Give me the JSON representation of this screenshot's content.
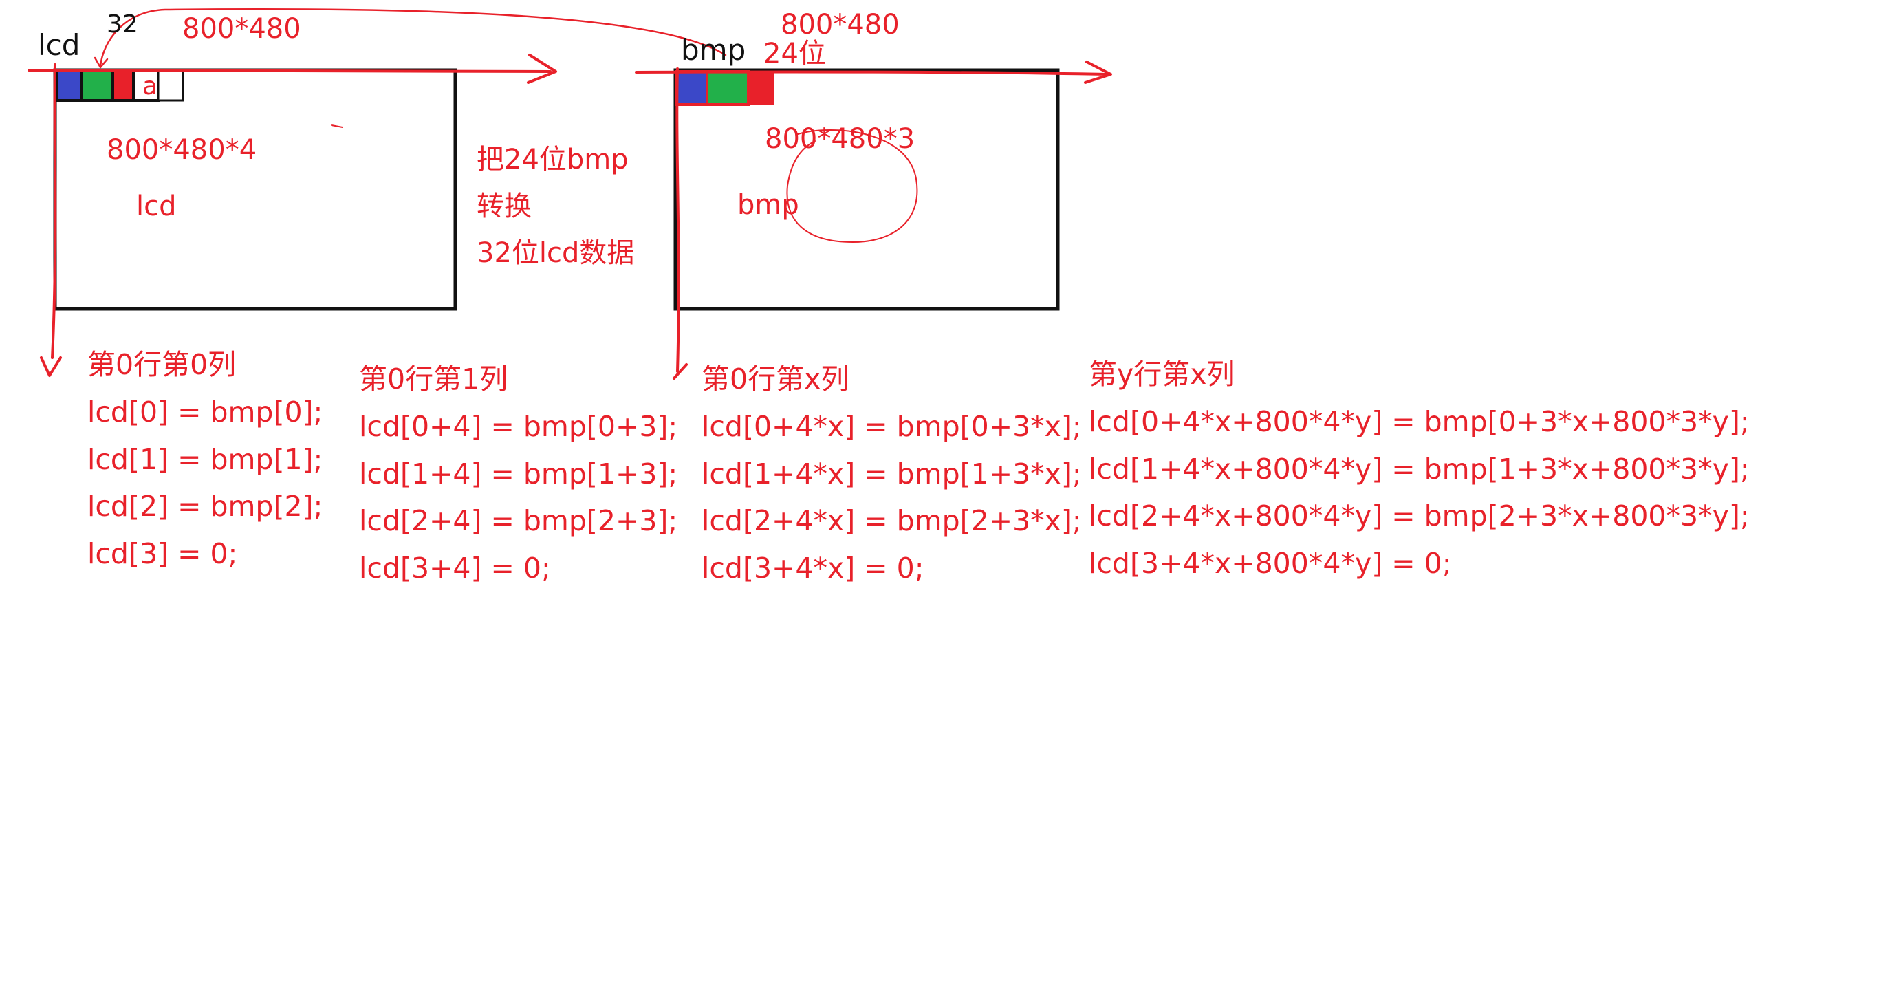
{
  "lcd_panel": {
    "name": "lcd",
    "bits": "32",
    "resolution": "800*480",
    "buffer_size": "800*480*4",
    "inner_label": "lcd",
    "alpha_label": "a"
  },
  "bmp_panel": {
    "name": "bmp",
    "resolution": "800*480",
    "bits": "24位",
    "buffer_size": "800*480*3",
    "inner_label": "bmp"
  },
  "conversion_note": {
    "line1": "把24位bmp",
    "line2": "转换",
    "line3": "32位lcd数据"
  },
  "formulas": [
    {
      "title": "第0行第0列",
      "lines": [
        "lcd[0] = bmp[0];",
        "lcd[1] = bmp[1];",
        "lcd[2] = bmp[2];",
        "lcd[3] = 0;"
      ]
    },
    {
      "title": "第0行第1列",
      "lines": [
        "lcd[0+4] = bmp[0+3];",
        "lcd[1+4] = bmp[1+3];",
        "lcd[2+4] = bmp[2+3];",
        "lcd[3+4] = 0;"
      ]
    },
    {
      "title": "第0行第x列",
      "lines": [
        "lcd[0+4*x] = bmp[0+3*x];",
        "lcd[1+4*x] = bmp[1+3*x];",
        "lcd[2+4*x] = bmp[2+3*x];",
        "lcd[3+4*x] = 0;"
      ]
    },
    {
      "title": "第y行第x列",
      "lines": [
        "lcd[0+4*x+800*4*y] = bmp[0+3*x+800*3*y];",
        "lcd[1+4*x+800*4*y] = bmp[1+3*x+800*3*y];",
        "lcd[2+4*x+800*4*y] = bmp[2+3*x+800*3*y];",
        "lcd[3+4*x+800*4*y] = 0;"
      ]
    }
  ],
  "colors": {
    "ink_red": "#e8212a",
    "ink_black": "#111111",
    "pixel_blue": "#3b48c8",
    "pixel_green": "#22b04a",
    "pixel_red": "#e8212a",
    "background": "#ffffff"
  }
}
